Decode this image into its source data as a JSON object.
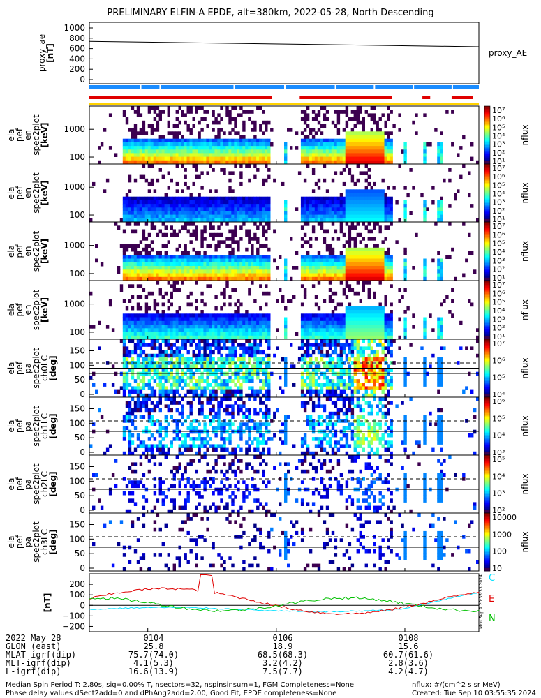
{
  "title": "PRELIMINARY ELFIN-A EPDE, alt=380km, 2022-05-28, North Descending",
  "panels": [
    {
      "id": "proxy_ae",
      "labels": [
        "proxy_ae",
        "[nT]"
      ],
      "yticks": [
        "1000",
        "800",
        "600",
        "400",
        "200",
        "0"
      ],
      "right_label": "proxy_AE"
    },
    {
      "id": "energy1",
      "labels": [
        "ela",
        "pef",
        "en",
        "spec2plot",
        "[keV]"
      ],
      "yticks": [
        "1000",
        "100"
      ],
      "cb_ticks": [
        "10⁷",
        "10⁶",
        "10⁵",
        "10⁴",
        "10³",
        "10²",
        "10¹"
      ],
      "cb_label": "nflux"
    },
    {
      "id": "energy2",
      "labels": [
        "ela",
        "pef",
        "en",
        "spec2plot",
        "[keV]"
      ],
      "yticks": [
        "1000",
        "100"
      ],
      "cb_ticks": [
        "10⁷",
        "10⁶",
        "10⁵",
        "10⁴",
        "10³",
        "10²",
        "10¹"
      ],
      "cb_label": "nflux"
    },
    {
      "id": "energy3",
      "labels": [
        "ela",
        "pef",
        "en",
        "spec2plot",
        "[keV]"
      ],
      "yticks": [
        "1000",
        "100"
      ],
      "cb_ticks": [
        "10⁷",
        "10⁶",
        "10⁵",
        "10⁴",
        "10³",
        "10²",
        "10¹"
      ],
      "cb_label": "nflux"
    },
    {
      "id": "energy4",
      "labels": [
        "ela",
        "pef",
        "en",
        "spec2plot",
        "[keV]"
      ],
      "yticks": [
        "1000",
        "100"
      ],
      "cb_ticks": [
        "10⁷",
        "10⁶",
        "10⁵",
        "10⁴",
        "10³",
        "10²",
        "10¹"
      ],
      "cb_label": "nflux"
    },
    {
      "id": "pa0",
      "labels": [
        "ela",
        "pef",
        "pa",
        "spec2plot",
        "ch0LC",
        "[deg]"
      ],
      "yticks": [
        "150",
        "100",
        "50",
        "0"
      ],
      "cb_ticks": [
        "10⁷",
        "10⁶",
        "10⁵",
        "10⁴"
      ],
      "cb_label": "nflux"
    },
    {
      "id": "pa1",
      "labels": [
        "ela",
        "pef",
        "pa",
        "spec2plot",
        "ch1LC",
        "[deg]"
      ],
      "yticks": [
        "150",
        "100",
        "50",
        "0"
      ],
      "cb_ticks": [
        "10⁶",
        "10⁵",
        "10⁴",
        "10³"
      ],
      "cb_label": "nflux"
    },
    {
      "id": "pa2",
      "labels": [
        "ela",
        "pef",
        "pa",
        "spec2plot",
        "ch2LC",
        "[deg]"
      ],
      "yticks": [
        "150",
        "100",
        "50",
        "0"
      ],
      "cb_ticks": [
        "10⁵",
        "10⁴",
        "10³",
        "10²"
      ],
      "cb_label": "nflux"
    },
    {
      "id": "pa3",
      "labels": [
        "ela",
        "pef",
        "pa",
        "spec2plot",
        "ch3LC",
        "[deg]"
      ],
      "yticks": [
        "150",
        "100",
        "50",
        "0"
      ],
      "cb_ticks": [
        "10000",
        "1000",
        "100",
        "10"
      ],
      "cb_label": "nflux"
    },
    {
      "id": "mag",
      "labels": [
        "[nT]"
      ],
      "yticks": [
        "200",
        "100",
        "0",
        "−100",
        "−200"
      ],
      "legend": [
        "C",
        "E",
        "N"
      ],
      "legend_colors": [
        "#00e0ff",
        "#e00000",
        "#00c000"
      ],
      "side_note": "Mon Sep 9 20:35:33 2024"
    }
  ],
  "chart_data": {
    "type": "heatmap",
    "proxy_ae": {
      "x_frac": [
        0,
        1
      ],
      "values": [
        740,
        635
      ],
      "ylim": [
        0,
        1000
      ]
    },
    "x_ticks": [
      "0104",
      "0106",
      "0108"
    ],
    "mag_series": [
      {
        "name": "C",
        "color": "#00e0ff",
        "ylim": [
          -250,
          300
        ]
      },
      {
        "name": "E",
        "color": "#e00000",
        "ylim": [
          -250,
          300
        ]
      },
      {
        "name": "N",
        "color": "#00c000",
        "ylim": [
          -250,
          300
        ]
      }
    ]
  },
  "info": {
    "row_labels": [
      "2022 May 28",
      "GLON (east)",
      "MLAT-igrf(dip)",
      "MLT-igrf(dip)",
      "L-igrf(dip)"
    ],
    "col1": [
      "0104",
      "25.8",
      "75.7(74.0)",
      "4.1(5.3)",
      "16.6(13.9)"
    ],
    "col2": [
      "0106",
      "18.9",
      "68.5(68.3)",
      "3.2(4.2)",
      "7.5(7.7)"
    ],
    "col3": [
      "0108",
      "15.6",
      "60.7(61.6)",
      "2.8(3.6)",
      "4.2(4.7)"
    ]
  },
  "footer": {
    "line1_left": "Median Spin Period T: 2.80s, sig=0.00% T, nsectors=32, nspinsinsum=1, FGM Completeness=None",
    "line2_left": "Phase delay values dSect2add=0 and dPhAng2add=2.00, Good Fit, EPDE completeness=None",
    "line1_right": "nflux: #/(cm^2 s sr MeV)",
    "line2_right": "Created: Tue Sep 10 03:55:35 2024"
  },
  "colors": {
    "frame": "#000000",
    "bar_blue": "#1a8cff",
    "bar_red": "#e00000",
    "bar_yellow": "#ffd200"
  }
}
